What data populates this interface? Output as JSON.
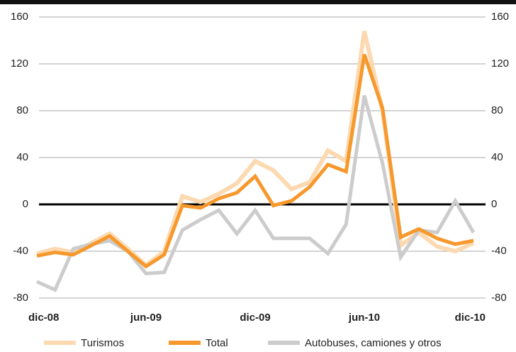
{
  "chart_data": {
    "type": "line",
    "categories": [
      "dic-08",
      null,
      null,
      null,
      null,
      null,
      "jun-09",
      null,
      null,
      null,
      null,
      null,
      "dic-09",
      null,
      null,
      null,
      null,
      null,
      "jun-10",
      null,
      null,
      null,
      null,
      null,
      "dic-10"
    ],
    "series": [
      {
        "name": "Turismos",
        "color": "#fcd9b0",
        "values": [
          -42,
          -38,
          -41,
          -33,
          -25,
          -38,
          -52,
          -40,
          7,
          2,
          9,
          18,
          37,
          29,
          13,
          19,
          46,
          37,
          148,
          80,
          -35,
          -24,
          -36,
          -40,
          -33
        ]
      },
      {
        "name": "Total",
        "color": "#f7982c",
        "values": [
          -44,
          -41,
          -43,
          -35,
          -27,
          -40,
          -53,
          -43,
          -1,
          -3,
          5,
          10,
          24,
          -1,
          3,
          15,
          34,
          28,
          128,
          82,
          -28,
          -21,
          -29,
          -34,
          -31
        ]
      },
      {
        "name": "Autobuses, camiones y otros",
        "color": "#cccccc",
        "values": [
          -66,
          -73,
          -38,
          -34,
          -31,
          -40,
          -59,
          -58,
          -22,
          -13,
          -5,
          -25,
          -5,
          -29,
          -29,
          -29,
          -42,
          -17,
          93,
          35,
          -45,
          -22,
          -24,
          3,
          -24
        ]
      }
    ],
    "ylim": [
      -80,
      160
    ],
    "yticks": [
      -80,
      -40,
      0,
      40,
      80,
      120,
      160
    ],
    "y2lim": [
      -80,
      160
    ],
    "y2ticks": [
      -80,
      -40,
      0,
      40,
      80,
      120,
      160
    ],
    "grid": true,
    "legend": "bottom"
  }
}
